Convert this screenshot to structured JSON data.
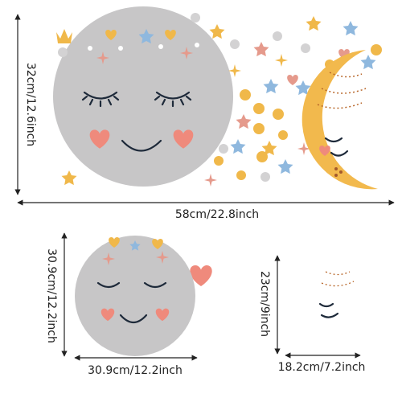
{
  "top_panel": {
    "height_label": "32cm/12.6inch",
    "width_label": "58cm/22.8inch"
  },
  "sun_panel": {
    "height_label": "30.9cm/12.2inch",
    "width_label": "30.9cm/12.2inch"
  },
  "moon_panel": {
    "height_label": "23cm/9inch",
    "width_label": "18.2cm/7.2inch"
  }
}
